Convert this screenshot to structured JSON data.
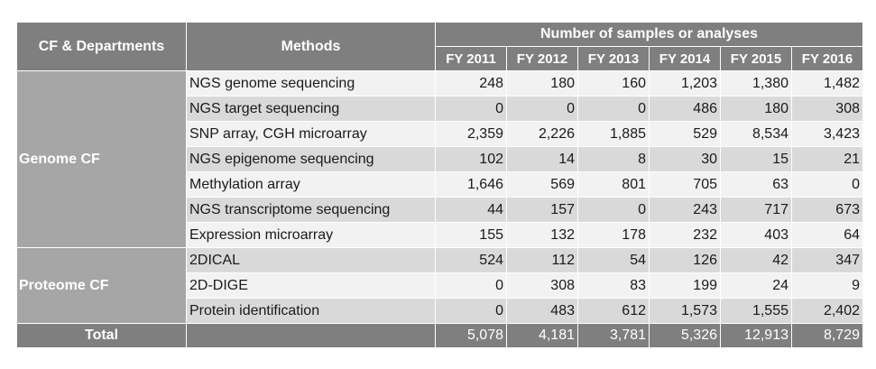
{
  "header": {
    "cf_departments": "CF & Departments",
    "methods": "Methods",
    "samples_heading": "Number of samples or analyses",
    "years": [
      "FY 2011",
      "FY 2012",
      "FY 2013",
      "FY 2014",
      "FY 2015",
      "FY 2016"
    ]
  },
  "groups": {
    "genome": "Genome CF",
    "proteome": "Proteome CF"
  },
  "rows": [
    {
      "method": "NGS genome sequencing",
      "values": [
        "248",
        "180",
        "160",
        "1,203",
        "1,380",
        "1,482"
      ]
    },
    {
      "method": "NGS target sequencing",
      "values": [
        "0",
        "0",
        "0",
        "486",
        "180",
        "308"
      ]
    },
    {
      "method": "SNP array, CGH microarray",
      "values": [
        "2,359",
        "2,226",
        "1,885",
        "529",
        "8,534",
        "3,423"
      ]
    },
    {
      "method": "NGS epigenome sequencing",
      "values": [
        "102",
        "14",
        "8",
        "30",
        "15",
        "21"
      ]
    },
    {
      "method": "Methylation array",
      "values": [
        "1,646",
        "569",
        "801",
        "705",
        "63",
        "0"
      ]
    },
    {
      "method": "NGS transcriptome sequencing",
      "values": [
        "44",
        "157",
        "0",
        "243",
        "717",
        "673"
      ]
    },
    {
      "method": "Expression microarray",
      "values": [
        "155",
        "132",
        "178",
        "232",
        "403",
        "64"
      ]
    },
    {
      "method": "2DICAL",
      "values": [
        "524",
        "112",
        "54",
        "126",
        "42",
        "347"
      ]
    },
    {
      "method": "2D-DIGE",
      "values": [
        "0",
        "308",
        "83",
        "199",
        "24",
        "9"
      ]
    },
    {
      "method": "Protein identification",
      "values": [
        "0",
        "483",
        "612",
        "1,573",
        "1,555",
        "2,402"
      ]
    }
  ],
  "total": {
    "label": "Total",
    "values": [
      "5,078",
      "4,181",
      "3,781",
      "5,326",
      "12,913",
      "8,729"
    ]
  }
}
